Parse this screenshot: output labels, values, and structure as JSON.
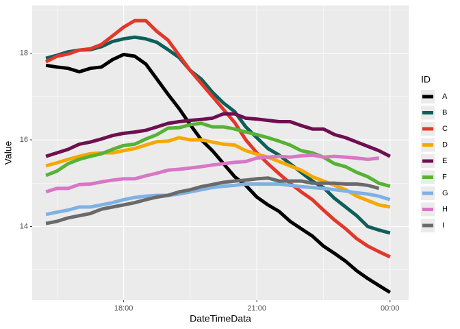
{
  "chart_data": {
    "type": "line",
    "x_label": "DateTimeData",
    "y_label": "Value",
    "legend_title": "ID",
    "x": [
      16.25,
      16.5,
      16.75,
      17,
      17.25,
      17.5,
      17.75,
      18,
      18.25,
      18.5,
      18.75,
      19,
      19.25,
      19.5,
      19.75,
      20,
      20.25,
      20.5,
      20.75,
      21,
      21.25,
      21.5,
      21.75,
      22,
      22.25,
      22.5,
      22.75,
      23,
      23.25,
      23.5,
      23.75,
      24
    ],
    "xlim": [
      15.94,
      24.42
    ],
    "xticks": [
      {
        "value": 18,
        "label": "18:00"
      },
      {
        "value": 21,
        "label": "21:00"
      },
      {
        "value": 24,
        "label": "00:00"
      }
    ],
    "ylim": [
      12.3,
      19.1
    ],
    "yticks": [
      14,
      16,
      18
    ],
    "grid": true,
    "legend": "right",
    "series": [
      {
        "name": "A",
        "color": "#000000",
        "values": [
          17.72,
          17.68,
          17.65,
          17.57,
          17.65,
          17.68,
          17.85,
          17.97,
          17.93,
          17.75,
          17.4,
          17.05,
          16.72,
          16.35,
          16.0,
          15.75,
          15.45,
          15.15,
          14.95,
          14.68,
          14.5,
          14.35,
          14.12,
          13.95,
          13.78,
          13.55,
          13.38,
          13.2,
          12.98,
          12.8,
          12.64,
          12.48
        ]
      },
      {
        "name": "B",
        "color": "#0f5e5a",
        "values": [
          17.88,
          17.95,
          18.03,
          18.07,
          18.08,
          18.15,
          18.27,
          18.33,
          18.37,
          18.33,
          18.25,
          18.08,
          17.9,
          17.6,
          17.4,
          17.1,
          16.85,
          16.65,
          16.3,
          16.05,
          15.8,
          15.65,
          15.45,
          15.25,
          15.05,
          14.9,
          14.65,
          14.45,
          14.25,
          14.0,
          13.92,
          13.85
        ]
      },
      {
        "name": "C",
        "color": "#e2382a",
        "values": [
          17.8,
          17.93,
          17.98,
          18.07,
          18.1,
          18.2,
          18.4,
          18.6,
          18.75,
          18.75,
          18.5,
          18.3,
          17.95,
          17.6,
          17.3,
          17.0,
          16.7,
          16.4,
          16.0,
          15.7,
          15.45,
          15.22,
          15.0,
          14.8,
          14.62,
          14.38,
          14.15,
          13.95,
          13.72,
          13.55,
          13.42,
          13.3
        ]
      },
      {
        "name": "D",
        "color": "#f6a700",
        "values": [
          15.4,
          15.47,
          15.55,
          15.62,
          15.68,
          15.7,
          15.7,
          15.75,
          15.8,
          15.88,
          15.96,
          15.97,
          16.05,
          16.0,
          16.0,
          15.95,
          15.9,
          15.88,
          15.75,
          15.67,
          15.6,
          15.5,
          15.4,
          15.3,
          15.15,
          15.05,
          14.95,
          14.85,
          14.7,
          14.6,
          14.5,
          14.45
        ]
      },
      {
        "name": "E",
        "color": "#6e0f50",
        "values": [
          15.62,
          15.7,
          15.78,
          15.9,
          15.95,
          16.02,
          16.1,
          16.15,
          16.18,
          16.22,
          16.3,
          16.38,
          16.42,
          16.45,
          16.47,
          16.5,
          16.6,
          16.6,
          16.5,
          16.48,
          16.45,
          16.42,
          16.42,
          16.33,
          16.25,
          16.25,
          16.12,
          16.05,
          15.95,
          15.85,
          15.75,
          15.62
        ]
      },
      {
        "name": "F",
        "color": "#57b235",
        "values": [
          15.18,
          15.28,
          15.45,
          15.55,
          15.62,
          15.68,
          15.78,
          15.87,
          15.9,
          16.02,
          16.12,
          16.27,
          16.28,
          16.35,
          16.38,
          16.3,
          16.3,
          16.25,
          16.18,
          16.12,
          16.05,
          15.97,
          15.88,
          15.75,
          15.7,
          15.6,
          15.45,
          15.38,
          15.25,
          15.15,
          15.0,
          14.93
        ]
      },
      {
        "name": "G",
        "color": "#7fb1e3",
        "values": [
          14.28,
          14.33,
          14.38,
          14.45,
          14.45,
          14.5,
          14.55,
          14.62,
          14.67,
          14.7,
          14.72,
          14.72,
          14.75,
          14.8,
          14.85,
          14.9,
          14.93,
          14.95,
          14.98,
          14.98,
          14.98,
          14.98,
          14.95,
          14.92,
          14.9,
          14.88,
          14.85,
          14.82,
          14.78,
          14.75,
          14.7,
          14.62
        ]
      },
      {
        "name": "H",
        "color": "#d877c5",
        "values": [
          14.8,
          14.88,
          14.88,
          14.97,
          14.98,
          15.03,
          15.07,
          15.1,
          15.1,
          15.17,
          15.23,
          15.3,
          15.32,
          15.35,
          15.38,
          15.42,
          15.45,
          15.48,
          15.5,
          15.58,
          15.6,
          15.62,
          15.6,
          15.63,
          15.65,
          15.6,
          15.62,
          15.6,
          15.58,
          15.55,
          15.58,
          null
        ]
      },
      {
        "name": "I",
        "color": "#6a6a6a",
        "values": [
          14.07,
          14.12,
          14.2,
          14.25,
          14.3,
          14.4,
          14.45,
          14.5,
          14.55,
          14.62,
          14.68,
          14.72,
          14.8,
          14.85,
          14.92,
          14.97,
          15.02,
          15.05,
          15.07,
          15.1,
          15.12,
          15.05,
          15.05,
          15.05,
          15.0,
          15.0,
          15.0,
          14.98,
          14.98,
          14.95,
          14.88,
          null
        ]
      }
    ]
  }
}
